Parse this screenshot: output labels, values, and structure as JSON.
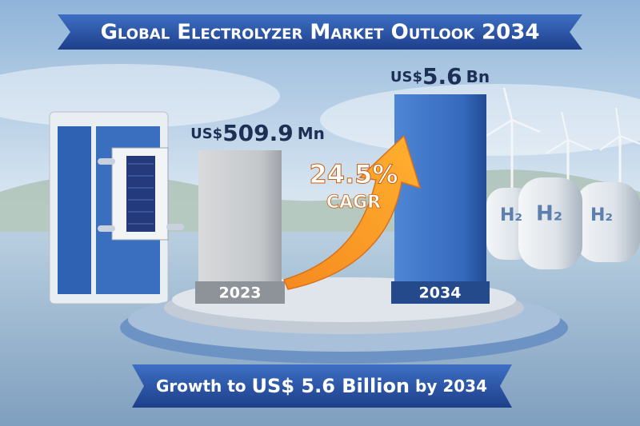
{
  "header": {
    "title": "Global Electrolyzer Market Outlook 2034"
  },
  "bars": [
    {
      "year": "2023",
      "prefix": "US$",
      "amount": "509.9",
      "unit": "Mn"
    },
    {
      "year": "2034",
      "prefix": "US$",
      "amount": "5.6",
      "unit": "Bn"
    }
  ],
  "growth": {
    "rate": "24.5%",
    "label": "CAGR"
  },
  "footer": {
    "lead": "Growth to",
    "highlight": "US$ 5.6 Billion",
    "tail": "by 2034"
  },
  "tanks": {
    "label": "H₂"
  }
}
